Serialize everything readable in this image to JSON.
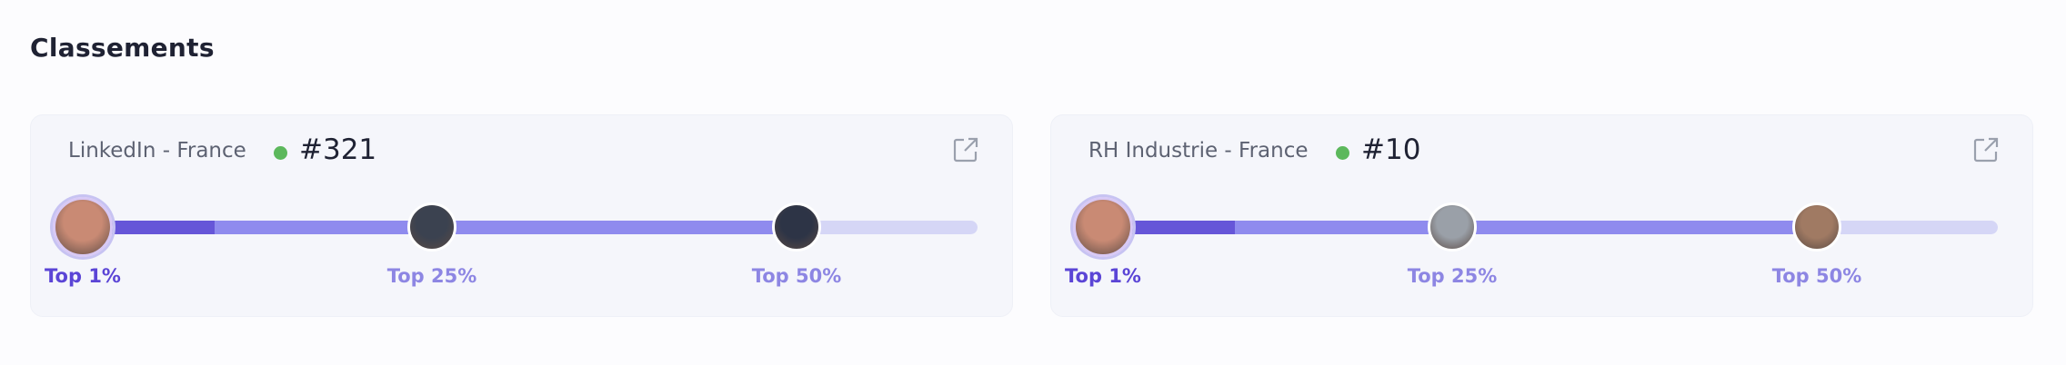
{
  "title": "Classements",
  "rankings": [
    {
      "name": "LinkedIn - France",
      "rank": "#321",
      "markers": [
        "Top 1%",
        "Top 25%",
        "Top 50%"
      ]
    },
    {
      "name": "RH Industrie - France",
      "rank": "#10",
      "markers": [
        "Top 1%",
        "Top 25%",
        "Top 50%"
      ]
    }
  ]
}
